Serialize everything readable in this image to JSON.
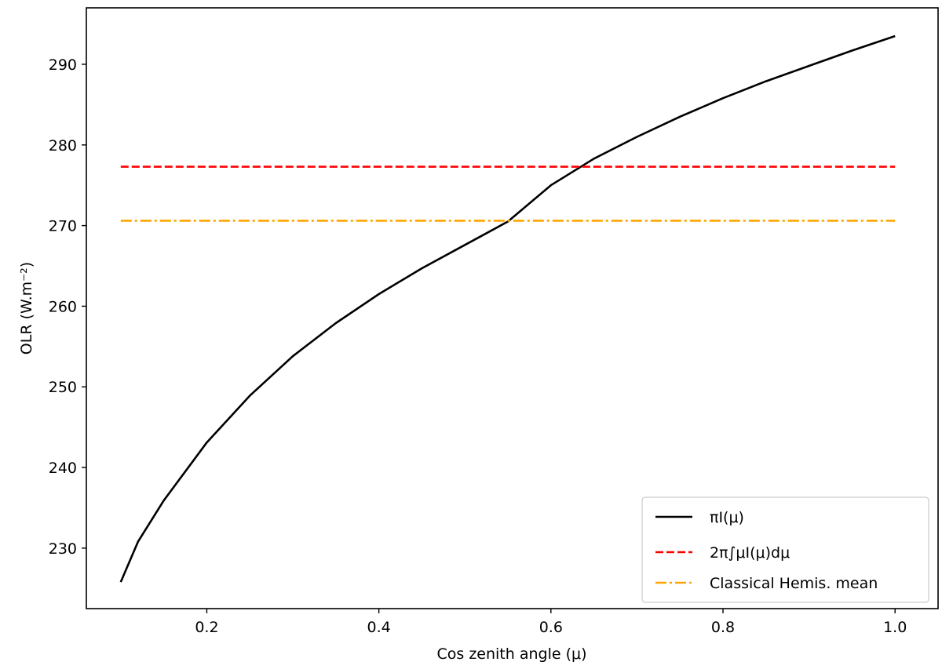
{
  "chart_data": {
    "type": "line",
    "title": "",
    "xlabel": "Cos zenith angle (μ)",
    "ylabel": "OLR (W.m⁻²)",
    "xlim": [
      0.06,
      1.05
    ],
    "ylim": [
      222.5,
      297
    ],
    "x_ticks": [
      0.2,
      0.4,
      0.6,
      0.8,
      1.0
    ],
    "x_tick_labels": [
      "0.2",
      "0.4",
      "0.6",
      "0.8",
      "1.0"
    ],
    "y_ticks": [
      230,
      240,
      250,
      260,
      270,
      280,
      290
    ],
    "y_tick_labels": [
      "230",
      "240",
      "250",
      "260",
      "270",
      "280",
      "290"
    ],
    "grid": false,
    "legend_position": "bottom-right",
    "series": [
      {
        "name": "πI(μ)",
        "color": "#000000",
        "style": "solid",
        "x": [
          0.1,
          0.12,
          0.15,
          0.2,
          0.25,
          0.3,
          0.35,
          0.4,
          0.45,
          0.5,
          0.55,
          0.6,
          0.65,
          0.7,
          0.75,
          0.8,
          0.85,
          0.9,
          0.95,
          1.0
        ],
        "y": [
          225.8,
          230.8,
          235.9,
          243.1,
          248.9,
          253.8,
          257.9,
          261.5,
          264.7,
          267.6,
          270.5,
          275.0,
          278.3,
          281.0,
          283.5,
          285.8,
          287.9,
          289.8,
          291.7,
          293.5
        ]
      },
      {
        "name": "2π∫μI(μ)dμ",
        "color": "#ff0000",
        "style": "dashed",
        "x": [
          0.1,
          1.0
        ],
        "y": [
          277.3,
          277.3
        ]
      },
      {
        "name": "Classical Hemis. mean",
        "color": "#ffa500",
        "style": "dashdot",
        "x": [
          0.1,
          1.0
        ],
        "y": [
          270.6,
          270.6
        ]
      }
    ]
  }
}
